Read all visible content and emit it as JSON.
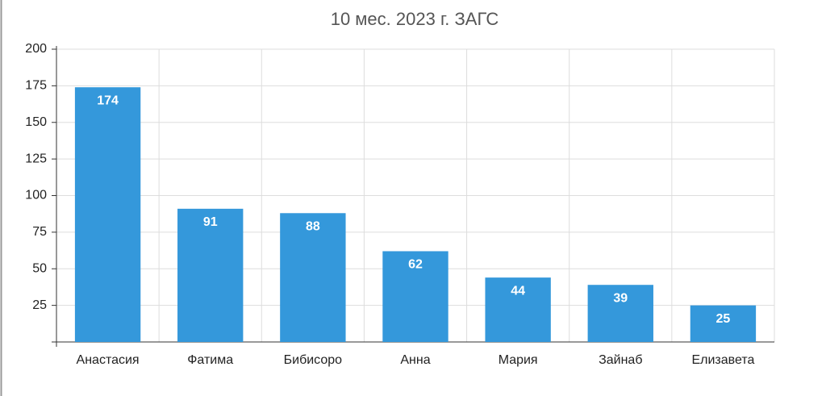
{
  "chart_data": {
    "type": "bar",
    "subtitle": "10 мес. 2023 г. ЗАГС",
    "categories": [
      "Анастасия",
      "Фатима",
      "Бибисоро",
      "Анна",
      "Мария",
      "Зайнаб",
      "Елизавета"
    ],
    "values": [
      174,
      91,
      88,
      62,
      44,
      39,
      25
    ],
    "color": "#3498db",
    "ylim": [
      0,
      200
    ],
    "yticks": [
      25,
      50,
      75,
      100,
      125,
      150,
      175,
      200
    ],
    "grid": true
  }
}
